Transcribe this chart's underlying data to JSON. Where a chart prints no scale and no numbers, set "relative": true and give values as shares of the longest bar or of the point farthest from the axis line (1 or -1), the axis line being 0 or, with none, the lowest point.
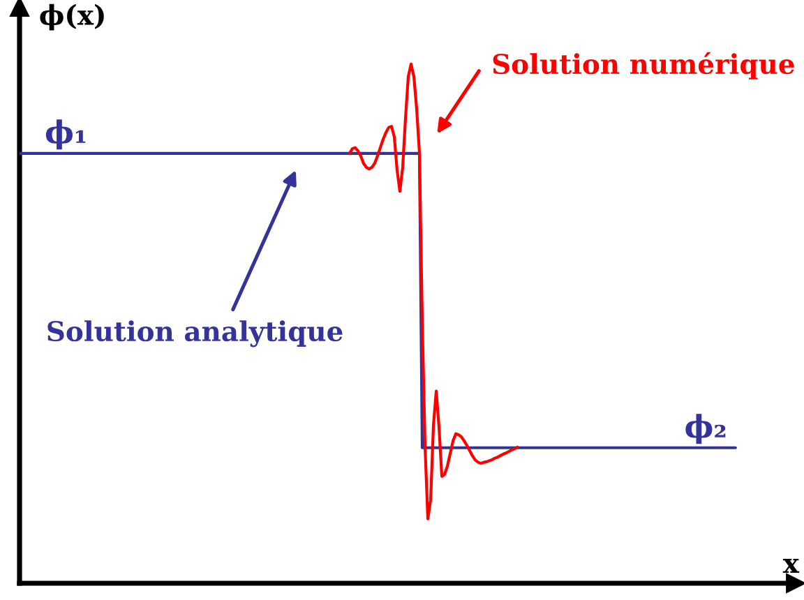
{
  "chart_data": {
    "type": "line",
    "relative": true,
    "tick_labels": false,
    "ylabel": "ϕ(x)",
    "xlabel": "x",
    "categories": [
      null,
      null,
      null,
      null,
      null,
      null,
      null,
      null,
      null,
      null,
      null,
      null,
      null,
      null,
      null,
      null,
      null,
      null,
      null,
      null,
      null,
      null,
      null,
      null,
      null,
      null,
      null,
      null,
      null,
      null,
      null,
      null,
      null,
      null,
      null,
      null,
      null,
      null,
      null,
      null,
      null,
      null,
      null,
      null,
      null,
      null,
      null,
      null,
      null,
      null,
      null,
      null,
      null,
      null,
      null,
      null,
      null,
      null,
      null,
      null,
      null,
      null,
      null,
      null,
      null,
      null,
      null,
      null,
      null,
      null,
      null,
      null,
      null,
      null,
      null,
      null,
      null,
      null,
      null,
      null,
      null,
      null,
      null,
      null,
      null,
      null,
      null,
      null,
      null,
      null,
      null,
      null,
      null,
      null,
      null,
      null,
      null,
      null,
      null,
      null,
      null,
      null,
      null,
      null,
      null,
      null,
      null,
      null,
      null,
      null,
      null,
      null,
      null,
      null,
      null,
      null,
      null,
      null,
      null,
      null,
      null,
      null,
      null,
      null,
      null,
      null,
      null,
      null,
      null,
      null,
      null,
      null,
      null,
      null,
      null,
      null,
      null,
      null,
      null,
      null,
      null,
      null,
      null,
      null,
      null,
      null,
      null,
      null,
      null,
      null,
      null,
      null,
      null,
      null,
      null,
      null,
      null,
      null,
      null,
      null,
      null,
      null,
      null,
      null,
      null,
      null,
      null,
      null,
      null,
      null,
      null,
      null,
      null,
      null,
      null,
      null,
      null,
      null,
      null,
      null,
      null,
      null,
      null,
      null,
      null,
      null,
      null,
      null,
      null,
      null,
      null,
      null,
      null,
      null,
      null,
      null,
      null,
      null,
      null,
      null,
      null,
      null,
      null,
      null,
      null,
      null,
      null,
      null,
      null,
      null,
      null,
      null,
      null,
      null,
      null,
      null,
      null,
      null,
      null,
      null,
      null,
      null,
      null,
      null,
      null,
      null,
      null,
      null,
      null,
      null,
      null,
      null,
      null,
      null,
      null,
      null,
      null,
      null,
      null,
      null,
      null,
      null,
      null,
      null,
      null,
      null,
      null,
      null,
      null,
      null,
      null,
      null,
      null,
      null,
      null,
      null,
      null
    ],
    "series": [
      {
        "name": "Solution analytique",
        "color": "#333399",
        "values": [
          0.828,
          0.828,
          0.828,
          0.828,
          0.828,
          0.828,
          0.828,
          0.828,
          0.828,
          0.828,
          0.828,
          0.828,
          0.828,
          0.828,
          0.828,
          0.828,
          0.828,
          0.828,
          0.828,
          0.828,
          0.828,
          0.828,
          0.828,
          0.828,
          0.828,
          0.828,
          0.828,
          0.828,
          0.828,
          0.828,
          0.828,
          0.828,
          0.828,
          0.828,
          0.828,
          0.828,
          0.828,
          0.828,
          0.828,
          0.828,
          0.828,
          0.828,
          0.828,
          0.828,
          0.828,
          0.828,
          0.828,
          0.828,
          0.828,
          0.828,
          0.828,
          0.828,
          0.828,
          0.828,
          0.828,
          0.828,
          0.828,
          0.828,
          0.828,
          0.828,
          0.828,
          0.828,
          0.828,
          0.828,
          0.828,
          0.828,
          0.828,
          0.828,
          0.828,
          0.828,
          0.828,
          0.828,
          0.828,
          0.828,
          0.828,
          0.828,
          0.828,
          0.828,
          0.828,
          0.828,
          0.828,
          0.828,
          0.828,
          0.828,
          0.828,
          0.828,
          0.828,
          0.828,
          0.828,
          0.828,
          0.828,
          0.828,
          0.828,
          0.828,
          0.828,
          0.828,
          0.828,
          0.828,
          0.828,
          0.828,
          0.828,
          0.828,
          0.828,
          0.828,
          0.828,
          0.828,
          0.828,
          0.828,
          0.828,
          0.828,
          0.828,
          0.828,
          0.828,
          0.828,
          0.828,
          0.828,
          0.828,
          0.828,
          0.828,
          0.828,
          0.828,
          0.828,
          0.828,
          0.828,
          0.828,
          0.828,
          0.828,
          0.828,
          0.828,
          0.828,
          0.828,
          0.828,
          0.828,
          0.828,
          0.828,
          0.828,
          0.828,
          0.828,
          0.828,
          0.828,
          0.828,
          0.828,
          0.828,
          0.828,
          0.261,
          0.261,
          0.261,
          0.261,
          0.261,
          0.261,
          0.261,
          0.261,
          0.261,
          0.261,
          0.261,
          0.261,
          0.261,
          0.261,
          0.261,
          0.261,
          0.261,
          0.261,
          0.261,
          0.261,
          0.261,
          0.261,
          0.261,
          0.261,
          0.261,
          0.261,
          0.261,
          0.261,
          0.261,
          0.261,
          0.261,
          0.261,
          0.261,
          0.261,
          0.261,
          0.261,
          0.261,
          0.261,
          0.261,
          0.261,
          0.261,
          0.261,
          0.261,
          0.261,
          0.261,
          0.261,
          0.261,
          0.261,
          0.261,
          0.261,
          0.261,
          0.261,
          0.261,
          0.261,
          0.261,
          0.261,
          0.261,
          0.261,
          0.261,
          0.261,
          0.261,
          0.261,
          0.261,
          0.261,
          0.261,
          0.261,
          0.261,
          0.261,
          0.261,
          0.261,
          0.261,
          0.261,
          0.261,
          0.261,
          0.261,
          0.261,
          0.261,
          0.261,
          0.261,
          0.261,
          0.261,
          0.261,
          0.261,
          0.261,
          0.261,
          0.261,
          0.261,
          0.261,
          0.261,
          0.261,
          0.261,
          0.261,
          0.261,
          0.261,
          0.261,
          0.261,
          0.261,
          0.261,
          0.261,
          0.261,
          0.261,
          0.261,
          0.261,
          0.261,
          0.261,
          0.261,
          0.261,
          0.261,
          0.261,
          0.261,
          0.261,
          0.261,
          0.261
        ]
      },
      {
        "name": "Solution numérique",
        "color": "#ff0000",
        "values": [
          null,
          null,
          null,
          null,
          null,
          null,
          null,
          null,
          null,
          null,
          null,
          null,
          null,
          null,
          null,
          null,
          null,
          null,
          null,
          null,
          null,
          null,
          null,
          null,
          null,
          null,
          null,
          null,
          null,
          null,
          null,
          null,
          null,
          null,
          null,
          null,
          null,
          null,
          null,
          null,
          null,
          null,
          null,
          null,
          null,
          null,
          null,
          null,
          null,
          null,
          null,
          null,
          null,
          null,
          null,
          null,
          null,
          null,
          null,
          null,
          null,
          null,
          null,
          null,
          null,
          null,
          null,
          null,
          null,
          null,
          null,
          null,
          null,
          null,
          null,
          null,
          null,
          null,
          null,
          null,
          null,
          null,
          null,
          null,
          null,
          null,
          null,
          null,
          null,
          null,
          null,
          null,
          null,
          null,
          null,
          null,
          null,
          null,
          null,
          null,
          null,
          null,
          null,
          null,
          null,
          null,
          null,
          null,
          null,
          null,
          null,
          null,
          null,
          null,
          null,
          null,
          null,
          null,
          0.828,
          0.837,
          0.839,
          0.833,
          0.823,
          0.809,
          0.801,
          0.798,
          0.801,
          0.809,
          0.823,
          0.839,
          0.855,
          0.868,
          0.878,
          0.88,
          0.86,
          0.796,
          0.755,
          0.801,
          0.895,
          0.976,
          1.0,
          0.976,
          0.914,
          0.828,
          0.505,
          0.263,
          0.124,
          0.161,
          0.304,
          0.37,
          0.3,
          0.206,
          0.21,
          0.226,
          0.25,
          0.274,
          0.288,
          0.286,
          0.282,
          0.274,
          0.265,
          0.255,
          0.245,
          0.237,
          0.233,
          0.231,
          0.233,
          0.234,
          0.236,
          0.238,
          0.241,
          0.243,
          0.246,
          0.249,
          0.251,
          0.254,
          0.257,
          0.259,
          0.262,
          null,
          null,
          null,
          null,
          null,
          null,
          null,
          null,
          null,
          null,
          null,
          null,
          null,
          null,
          null,
          null,
          null,
          null,
          null,
          null,
          null,
          null,
          null,
          null,
          null,
          null,
          null,
          null,
          null,
          null,
          null,
          null,
          null,
          null,
          null,
          null,
          null,
          null,
          null,
          null,
          null,
          null,
          null,
          null,
          null,
          null,
          null,
          null,
          null,
          null,
          null,
          null,
          null,
          null,
          null,
          null,
          null,
          null,
          null,
          null,
          null,
          null,
          null,
          null,
          null,
          null,
          null,
          null,
          null,
          null,
          null,
          null,
          null,
          null,
          null,
          null,
          null,
          null
        ]
      }
    ],
    "annotations": [
      {
        "text": "ϕ₁",
        "y": 0.828
      },
      {
        "text": "ϕ₂",
        "y": 0.261
      }
    ]
  }
}
